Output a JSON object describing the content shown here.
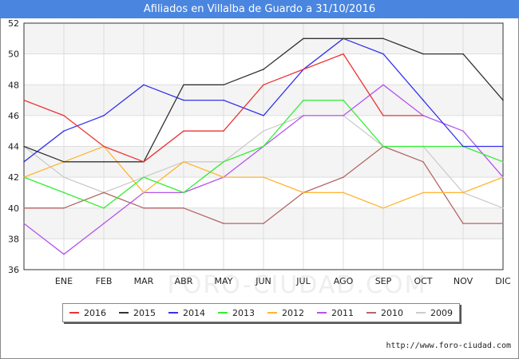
{
  "title": "Afiliados en Villalba de Guardo a 31/10/2016",
  "source": "http://www.foro-ciudad.com",
  "watermark": "FORO-CIUDAD.COM",
  "chart_data": {
    "type": "line",
    "title": "Afiliados en Villalba de Guardo a 31/10/2016",
    "categories": [
      "DIC_prev",
      "ENE",
      "FEB",
      "MAR",
      "ABR",
      "MAY",
      "JUN",
      "JUL",
      "AGO",
      "SEP",
      "OCT",
      "NOV",
      "DIC"
    ],
    "x_tick_labels": [
      "",
      "ENE",
      "FEB",
      "MAR",
      "ABR",
      "MAY",
      "JUN",
      "JUL",
      "AGO",
      "SEP",
      "OCT",
      "NOV",
      "DIC"
    ],
    "ylim": [
      36,
      52
    ],
    "yticks": [
      36,
      38,
      40,
      42,
      44,
      46,
      48,
      50,
      52
    ],
    "grid": true,
    "legend_position": "bottom",
    "series": [
      {
        "name": "2016",
        "color": "#ee3333",
        "values": [
          47,
          46,
          44,
          43,
          45,
          45,
          48,
          49,
          50,
          46,
          46,
          null,
          null
        ]
      },
      {
        "name": "2015",
        "color": "#333333",
        "values": [
          44,
          43,
          43,
          43,
          48,
          48,
          49,
          51,
          51,
          51,
          50,
          50,
          47
        ]
      },
      {
        "name": "2014",
        "color": "#3333ee",
        "values": [
          43,
          45,
          46,
          48,
          47,
          47,
          46,
          49,
          51,
          50,
          47,
          44,
          44
        ]
      },
      {
        "name": "2013",
        "color": "#33ee33",
        "values": [
          42,
          41,
          40,
          42,
          41,
          43,
          44,
          47,
          47,
          44,
          44,
          44,
          43
        ]
      },
      {
        "name": "2012",
        "color": "#ffb533",
        "values": [
          42,
          43,
          44,
          41,
          43,
          42,
          42,
          41,
          41,
          40,
          41,
          41,
          42
        ]
      },
      {
        "name": "2011",
        "color": "#b355ee",
        "values": [
          39,
          37,
          39,
          41,
          41,
          42,
          44,
          46,
          46,
          48,
          46,
          45,
          42
        ]
      },
      {
        "name": "2010",
        "color": "#b36666",
        "values": [
          40,
          40,
          41,
          40,
          40,
          39,
          39,
          41,
          42,
          44,
          43,
          39,
          39
        ]
      },
      {
        "name": "2009",
        "color": "#cccccc",
        "values": [
          44,
          42,
          41,
          42,
          43,
          43,
          45,
          46,
          46,
          44,
          44,
          41,
          40
        ]
      }
    ]
  }
}
